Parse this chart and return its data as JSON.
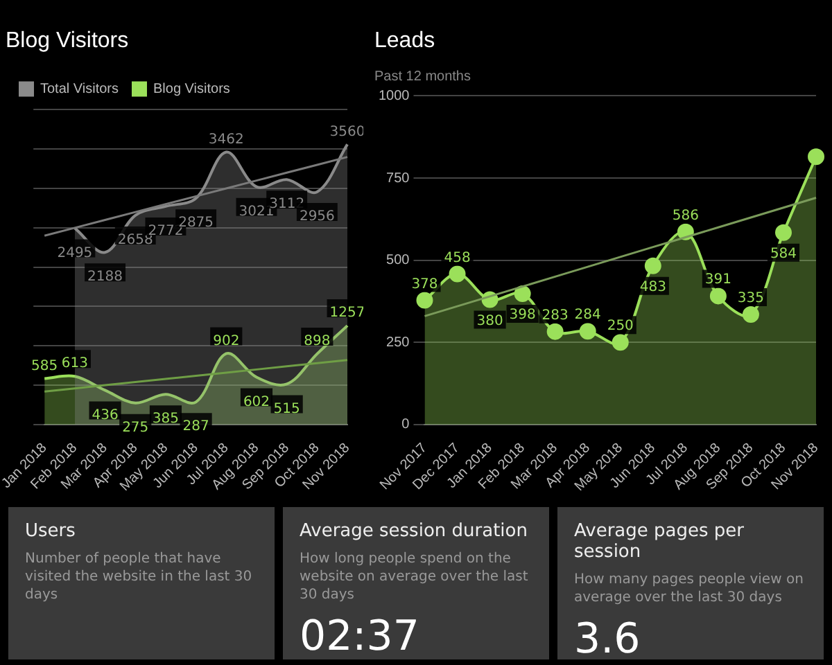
{
  "chart_data": [
    {
      "type": "area",
      "title": "Blog Visitors",
      "categories": [
        "Jan 2018",
        "Feb 2018",
        "Mar 2018",
        "Apr 2018",
        "May 2018",
        "Jun 2018",
        "Jul 2018",
        "Aug 2018",
        "Sep 2018",
        "Oct 2018",
        "Nov 2018"
      ],
      "series": [
        {
          "name": "Total Visitors",
          "color": "#8a8a8a",
          "values": [
            null,
            2495,
            2188,
            2658,
            2772,
            2875,
            3462,
            3021,
            3112,
            2956,
            3560
          ],
          "value_labels": [
            null,
            "2495",
            "2188",
            "2658",
            "2772",
            "2875",
            "3462",
            "3021",
            "3112",
            "2956",
            "3560"
          ]
        },
        {
          "name": "Blog Visitors",
          "color": "#9be05a",
          "values": [
            585,
            613,
            436,
            275,
            385,
            287,
            902,
            602,
            515,
            898,
            1257
          ],
          "value_labels": [
            "585",
            "613",
            "436",
            "275",
            "385",
            "287",
            "902",
            "602",
            "515",
            "898",
            "1257"
          ]
        },
        {
          "type": "line",
          "color": "#7a7a7a",
          "values": [
            2400,
            2500,
            2600,
            2700,
            2800,
            2900,
            3000,
            3100,
            3200,
            3300,
            3400
          ]
        },
        {
          "type": "line",
          "color": "#6f9e45",
          "values": [
            420,
            460,
            500,
            540,
            580,
            620,
            660,
            700,
            740,
            780,
            820
          ]
        }
      ],
      "ylim": [
        0,
        4000
      ],
      "yticks": [
        {
          "value": 0,
          "label": null
        },
        {
          "value": 500,
          "label": null
        },
        {
          "value": 1000,
          "label": null
        },
        {
          "value": 1500,
          "label": null
        },
        {
          "value": 2000,
          "label": null
        },
        {
          "value": 2500,
          "label": null
        },
        {
          "value": 3000,
          "label": null
        },
        {
          "value": 3500,
          "label": null
        },
        {
          "value": 4000,
          "label": null
        }
      ],
      "tick_labels": "x",
      "grid": "y",
      "legend": "top left",
      "marker": "none"
    },
    {
      "type": "area",
      "title": "Leads",
      "subtitle": "Past 12 months",
      "categories": [
        "Nov 2017",
        "Dec 2017",
        "Jan 2018",
        "Feb 2018",
        "Mar 2018",
        "Apr 2018",
        "May 2018",
        "Jun 2018",
        "Jul 2018",
        "Aug 2018",
        "Sep 2018",
        "Oct 2018",
        "Nov 2018"
      ],
      "series": [
        {
          "color": "#9be05a",
          "values": [
            378,
            458,
            380,
            398,
            283,
            284,
            250,
            483,
            586,
            391,
            335,
            584,
            815
          ],
          "value_labels": [
            "378",
            "458",
            "380",
            "398",
            "283",
            "284",
            "250",
            "483",
            "586",
            "391",
            "335",
            "584",
            null
          ]
        },
        {
          "type": "line",
          "color": "#7a9a5a",
          "marker": "none",
          "values": [
            330,
            360,
            390,
            420,
            450,
            480,
            510,
            540,
            570,
            600,
            630,
            660,
            690
          ]
        }
      ],
      "ylim": [
        0,
        1000
      ],
      "yticks": [
        0,
        250,
        500,
        750,
        1000
      ],
      "grid": "y",
      "legend": false,
      "marker": "circle"
    },
    {
      "type": "other",
      "title": "Users",
      "annotations": [
        "Number of people that have visited the website in the last 30 days"
      ]
    },
    {
      "type": "other",
      "title": "Average session duration",
      "annotations": [
        "How long people spend on the website on average over the last 30 days",
        "02:37"
      ]
    },
    {
      "type": "other",
      "title": "Average pages per session",
      "annotations": [
        "How many pages people view on average over the last 30 days",
        "3.6"
      ]
    }
  ]
}
